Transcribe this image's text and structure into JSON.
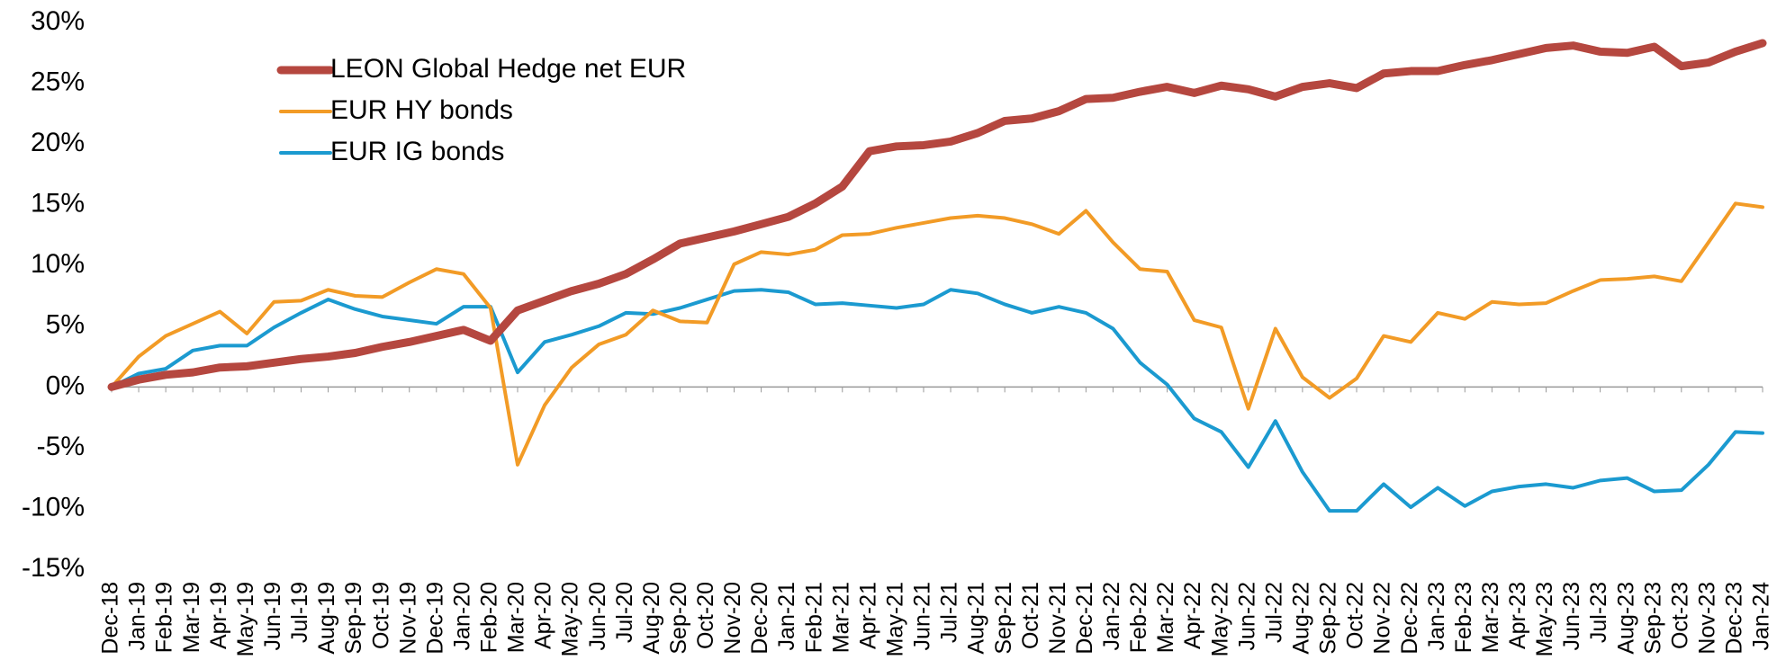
{
  "chart_data": {
    "type": "line",
    "categories": [
      "Dec-18",
      "Jan-19",
      "Feb-19",
      "Mar-19",
      "Apr-19",
      "May-19",
      "Jun-19",
      "Jul-19",
      "Aug-19",
      "Sep-19",
      "Oct-19",
      "Nov-19",
      "Dec-19",
      "Jan-20",
      "Feb-20",
      "Mar-20",
      "Apr-20",
      "May-20",
      "Jun-20",
      "Jul-20",
      "Aug-20",
      "Sep-20",
      "Oct-20",
      "Nov-20",
      "Dec-20",
      "Jan-21",
      "Feb-21",
      "Mar-21",
      "Apr-21",
      "May-21",
      "Jun-21",
      "Jul-21",
      "Aug-21",
      "Sep-21",
      "Oct-21",
      "Nov-21",
      "Dec-21",
      "Jan-22",
      "Feb-22",
      "Mar-22",
      "Apr-22",
      "May-22",
      "Jun-22",
      "Jul-22",
      "Aug-22",
      "Sep-22",
      "Oct-22",
      "Nov-22",
      "Dec-22",
      "Jan-23",
      "Feb-23",
      "Mar-23",
      "Apr-23",
      "May-23",
      "Jun-23",
      "Jul-23",
      "Aug-23",
      "Sep-23",
      "Oct-23",
      "Nov-23",
      "Dec-23",
      "Jan-24"
    ],
    "series": [
      {
        "name": "LEON Global Hedge net EUR",
        "color": "#b5473f",
        "width": 9,
        "values": [
          0,
          0.6,
          1.0,
          1.2,
          1.6,
          1.7,
          2.0,
          2.3,
          2.5,
          2.8,
          3.3,
          3.7,
          4.2,
          4.7,
          3.8,
          6.3,
          7.1,
          7.9,
          8.5,
          9.3,
          10.5,
          11.8,
          12.3,
          12.8,
          13.4,
          14.0,
          15.1,
          16.5,
          19.4,
          19.8,
          19.9,
          20.2,
          20.9,
          21.9,
          22.1,
          22.7,
          23.7,
          23.8,
          24.3,
          24.7,
          24.2,
          24.8,
          24.5,
          23.9,
          24.7,
          25.0,
          24.6,
          25.8,
          26.0,
          26.0,
          26.5,
          26.9,
          27.4,
          27.9,
          28.1,
          27.6,
          27.5,
          28.0,
          26.4,
          26.7,
          27.6,
          28.3
        ]
      },
      {
        "name": "EUR HY bonds",
        "color": "#f29b26",
        "width": 4,
        "values": [
          0,
          2.5,
          4.2,
          5.2,
          6.2,
          4.4,
          7.0,
          7.1,
          8.0,
          7.5,
          7.4,
          8.6,
          9.7,
          9.3,
          6.5,
          -6.4,
          -1.5,
          1.6,
          3.5,
          4.3,
          6.3,
          5.4,
          5.3,
          10.1,
          11.1,
          10.9,
          11.3,
          12.5,
          12.6,
          13.1,
          13.5,
          13.9,
          14.1,
          13.9,
          13.4,
          12.6,
          14.5,
          11.9,
          9.7,
          9.5,
          5.5,
          4.9,
          -1.8,
          4.8,
          0.8,
          -0.9,
          0.7,
          4.2,
          3.7,
          6.1,
          5.6,
          7.0,
          6.8,
          6.9,
          7.9,
          8.8,
          8.9,
          9.1,
          8.7,
          11.9,
          15.1,
          14.8
        ]
      },
      {
        "name": "EUR IG bonds",
        "color": "#1b9ad0",
        "width": 4,
        "values": [
          0,
          1.1,
          1.5,
          3.0,
          3.4,
          3.4,
          4.9,
          6.1,
          7.2,
          6.4,
          5.8,
          5.5,
          5.2,
          6.6,
          6.6,
          1.2,
          3.7,
          4.3,
          5.0,
          6.1,
          6.0,
          6.5,
          7.2,
          7.9,
          8.0,
          7.8,
          6.8,
          6.9,
          6.7,
          6.5,
          6.8,
          8.0,
          7.7,
          6.8,
          6.1,
          6.6,
          6.1,
          4.8,
          2.0,
          0.2,
          -2.6,
          -3.7,
          -6.6,
          -2.8,
          -7.0,
          -10.2,
          -10.2,
          -8.0,
          -9.9,
          -8.3,
          -9.8,
          -8.6,
          -8.2,
          -8.0,
          -8.3,
          -7.7,
          -7.5,
          -8.6,
          -8.5,
          -6.4,
          -3.7,
          -3.8
        ]
      }
    ],
    "ylim": [
      -15,
      30
    ],
    "yticks": [
      {
        "value": -15,
        "label": "-15%"
      },
      {
        "value": -10,
        "label": "-10%"
      },
      {
        "value": -5,
        "label": "-5%"
      },
      {
        "value": 0,
        "label": "0%"
      },
      {
        "value": 5,
        "label": "5%"
      },
      {
        "value": 10,
        "label": "10%"
      },
      {
        "value": 15,
        "label": "15%"
      },
      {
        "value": 20,
        "label": "20%"
      },
      {
        "value": 25,
        "label": "25%"
      },
      {
        "value": 30,
        "label": "30%"
      }
    ],
    "grid": false,
    "legend": "upper left"
  }
}
